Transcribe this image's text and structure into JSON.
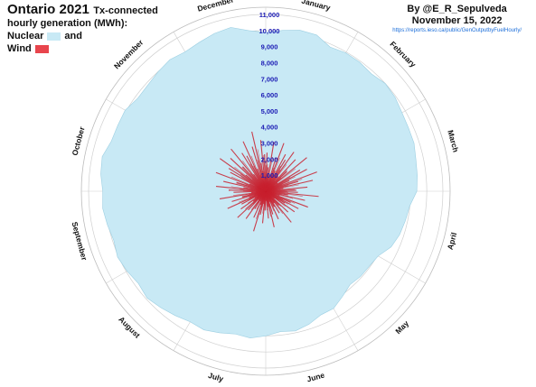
{
  "title": {
    "main": "Ontario 2021",
    "sub_line1": "Tx-connected",
    "sub_line2": "hourly generation (MWh):"
  },
  "legend": {
    "nuclear_label": "Nuclear",
    "and_label": "and",
    "wind_label": "Wind"
  },
  "credit": {
    "author": "By @E_R_Sepulveda",
    "date": "November 15, 2022",
    "url": "https://reports.ieso.ca/public/GenOutputbyFuelHourly/"
  },
  "colors": {
    "nuclear_fill": "#c8e9f5",
    "wind": "#c8202e",
    "grid": "#d0d0d0",
    "tick_label": "#1b1bb4"
  },
  "chart_data": {
    "type": "area",
    "polar": true,
    "year": 2021,
    "x_unit": "month",
    "categories": [
      "January",
      "February",
      "March",
      "April",
      "May",
      "June",
      "July",
      "August",
      "September",
      "October",
      "November",
      "December"
    ],
    "ylim": [
      0,
      11000
    ],
    "y_ticks": [
      1000,
      2000,
      3000,
      4000,
      5000,
      6000,
      7000,
      8000,
      9000,
      10000,
      11000
    ],
    "y_tick_labels": [
      "1,000",
      "2,000",
      "3,000",
      "4,000",
      "5,000",
      "6,000",
      "7,000",
      "8,000",
      "9,000",
      "10,000",
      "11,000"
    ],
    "grid": true,
    "series": [
      {
        "name": "Nuclear",
        "kind": "area",
        "monthly_profile_mwh": [
          [
            10000,
            10100,
            10200,
            10100,
            9900
          ],
          [
            9900,
            9800,
            9900,
            10000,
            9850
          ],
          [
            9850,
            9700,
            9600,
            9650,
            9500
          ],
          [
            9300,
            9100,
            8900,
            8700,
            8400
          ],
          [
            8100,
            7900,
            7800,
            7900,
            8100
          ],
          [
            8300,
            8500,
            8700,
            8800,
            8900
          ],
          [
            9000,
            9100,
            9200,
            9300,
            9400
          ],
          [
            9500,
            9600,
            9700,
            9800,
            9850
          ],
          [
            9900,
            9950,
            10000,
            10050,
            10100
          ],
          [
            10200,
            10300,
            10300,
            10200,
            10100
          ],
          [
            10000,
            9950,
            9900,
            9950,
            10000
          ],
          [
            10050,
            10100,
            10200,
            10500,
            10050
          ]
        ]
      },
      {
        "name": "Wind",
        "kind": "radial-lines",
        "monthly_profile_mwh": [
          [
            2400,
            1500,
            3100,
            900,
            2200,
            3200,
            1400,
            2600
          ],
          [
            2300,
            3000,
            1200,
            2700,
            1800,
            3300,
            900,
            2500
          ],
          [
            2900,
            1600,
            3400,
            2100,
            3000,
            1100,
            2600,
            1900
          ],
          [
            2000,
            3300,
            1400,
            2500,
            900,
            2800,
            1700,
            2300
          ],
          [
            1400,
            2200,
            700,
            1900,
            1200,
            2500,
            900,
            1600
          ],
          [
            1100,
            1900,
            700,
            1500,
            2300,
            1000,
            1700,
            600
          ],
          [
            1200,
            2000,
            800,
            1500,
            2600,
            900,
            1800,
            700
          ],
          [
            1300,
            2100,
            700,
            1600,
            2400,
            1000,
            1900,
            800
          ],
          [
            1700,
            2600,
            1100,
            2200,
            1500,
            2900,
            900,
            2000
          ],
          [
            2300,
            3100,
            1400,
            2700,
            1900,
            3300,
            1100,
            2500
          ],
          [
            2700,
            3500,
            1600,
            3000,
            2100,
            3400,
            1300,
            2800
          ],
          [
            2500,
            3400,
            1500,
            2900,
            3800,
            1800,
            3200,
            2300
          ]
        ]
      }
    ]
  }
}
